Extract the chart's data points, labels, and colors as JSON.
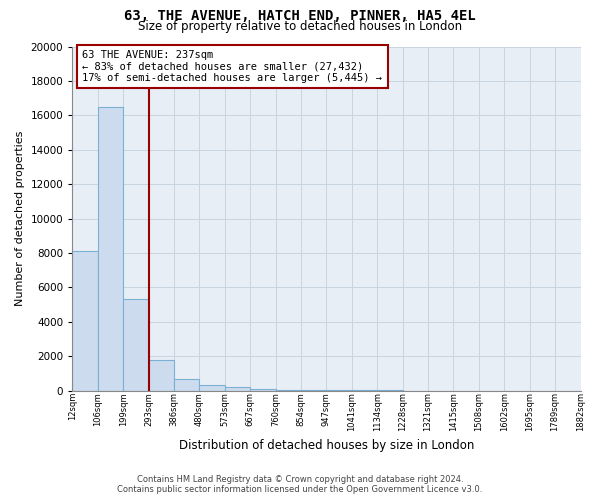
{
  "title_line1": "63, THE AVENUE, HATCH END, PINNER, HA5 4EL",
  "title_line2": "Size of property relative to detached houses in London",
  "xlabel": "Distribution of detached houses by size in London",
  "ylabel": "Number of detached properties",
  "bar_values": [
    8100,
    16500,
    5300,
    1800,
    650,
    350,
    200,
    100,
    60,
    35,
    20,
    15,
    10,
    8,
    5,
    3,
    2,
    1,
    1,
    1
  ],
  "bin_labels": [
    "12sqm",
    "106sqm",
    "199sqm",
    "293sqm",
    "386sqm",
    "480sqm",
    "573sqm",
    "667sqm",
    "760sqm",
    "854sqm",
    "947sqm",
    "1041sqm",
    "1134sqm",
    "1228sqm",
    "1321sqm",
    "1415sqm",
    "1508sqm",
    "1602sqm",
    "1695sqm",
    "1789sqm",
    "1882sqm"
  ],
  "bar_color": "#ccdcee",
  "bar_edge_color": "#7bafd4",
  "vline_color": "#990000",
  "vline_x": 3.0,
  "annotation_text": "63 THE AVENUE: 237sqm\n← 83% of detached houses are smaller (27,432)\n17% of semi-detached houses are larger (5,445) →",
  "annotation_box_color": "#ffffff",
  "annotation_box_edge": "#990000",
  "ylim": [
    0,
    20000
  ],
  "yticks": [
    0,
    2000,
    4000,
    6000,
    8000,
    10000,
    12000,
    14000,
    16000,
    18000,
    20000
  ],
  "footer_line1": "Contains HM Land Registry data © Crown copyright and database right 2024.",
  "footer_line2": "Contains public sector information licensed under the Open Government Licence v3.0.",
  "bg_color": "#ffffff",
  "plot_bg_color": "#e8eef5",
  "grid_color": "#c8d4e0"
}
